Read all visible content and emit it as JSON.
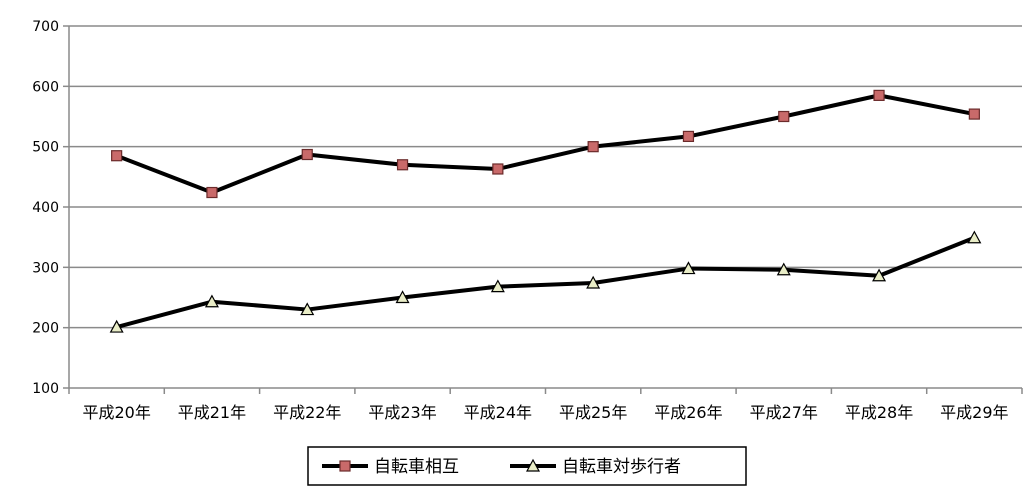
{
  "chart_data": {
    "type": "line",
    "categories": [
      "平成20年",
      "平成21年",
      "平成22年",
      "平成23年",
      "平成24年",
      "平成25年",
      "平成26年",
      "平成27年",
      "平成28年",
      "平成29年"
    ],
    "series": [
      {
        "name": "自転車相互",
        "values": [
          485,
          424,
          487,
          470,
          463,
          500,
          517,
          550,
          585,
          554
        ],
        "color": "#000000",
        "marker": "square",
        "marker_color": "#c96a6a"
      },
      {
        "name": "自転車対歩行者",
        "values": [
          201,
          243,
          230,
          250,
          268,
          274,
          298,
          296,
          286,
          349
        ],
        "color": "#000000",
        "marker": "triangle",
        "marker_color": "#e9edc7"
      }
    ],
    "yticks": [
      100,
      200,
      300,
      400,
      500,
      600,
      700
    ],
    "ylim": [
      100,
      700
    ],
    "grid": true,
    "legend": "bottom-center",
    "title": "",
    "xlabel": "",
    "ylabel": ""
  }
}
